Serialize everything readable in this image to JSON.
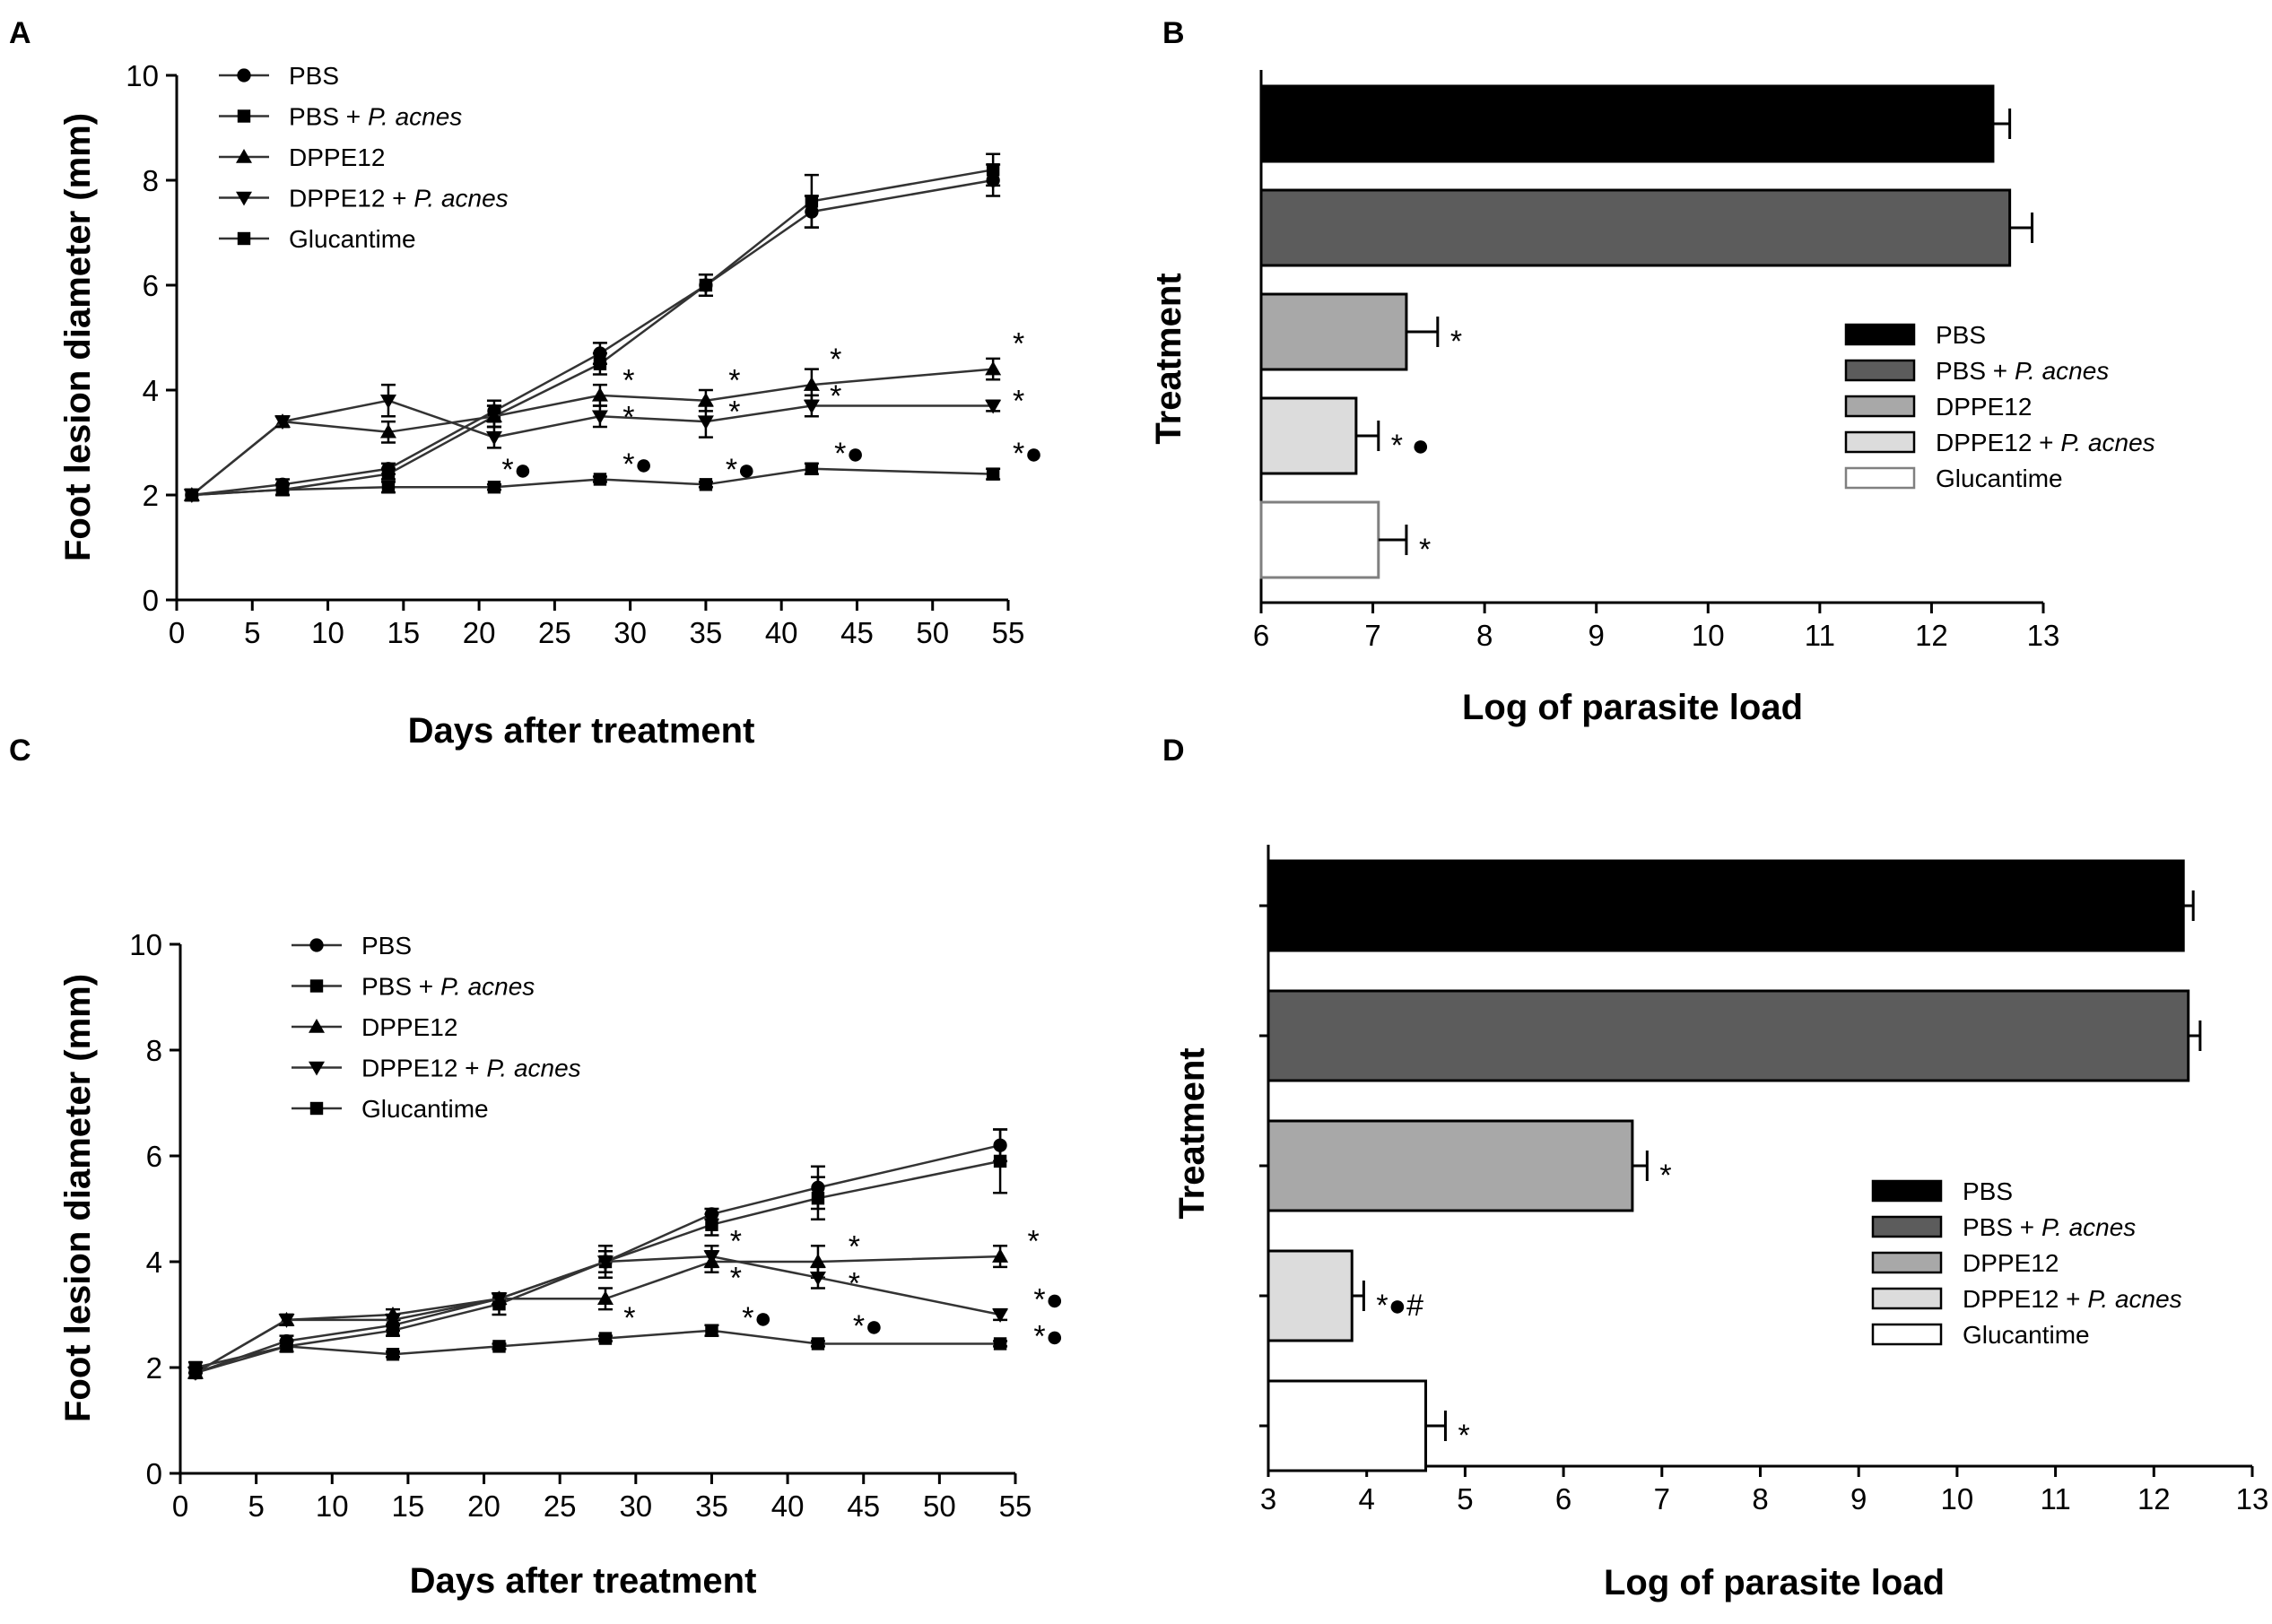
{
  "chart_data": [
    {
      "panel": "A",
      "type": "line",
      "xlabel": "Days after treatment",
      "ylabel": "Foot lesion diameter (mm)",
      "xticks": [
        0,
        5,
        10,
        15,
        20,
        25,
        30,
        35,
        40,
        45,
        50,
        55
      ],
      "yticks": [
        0,
        2,
        4,
        6,
        8,
        10
      ],
      "xlim": [
        0,
        55
      ],
      "ylim": [
        0,
        10
      ],
      "x": [
        1,
        7,
        14,
        21,
        28,
        35,
        42,
        54
      ],
      "series": [
        {
          "name": "PBS",
          "name_plain": "PBS",
          "name_italic": "",
          "marker": "circle",
          "values": [
            2.0,
            2.2,
            2.5,
            3.6,
            4.7,
            6.0,
            7.4,
            8.0
          ],
          "err": [
            0.1,
            0.1,
            0.1,
            0.2,
            0.2,
            0.2,
            0.3,
            0.3
          ]
        },
        {
          "name": "PBS + P. acnes",
          "name_plain": "PBS + ",
          "name_italic": "P. acnes",
          "marker": "square",
          "values": [
            2.0,
            2.1,
            2.4,
            3.5,
            4.5,
            6.0,
            7.6,
            8.2
          ],
          "err": [
            0.1,
            0.1,
            0.1,
            0.2,
            0.2,
            0.2,
            0.5,
            0.3
          ]
        },
        {
          "name": "DPPE12",
          "name_plain": "DPPE12",
          "name_italic": "",
          "marker": "triangle-up",
          "values": [
            2.0,
            3.4,
            3.2,
            3.5,
            3.9,
            3.8,
            4.1,
            4.4
          ],
          "err": [
            0.1,
            0.1,
            0.2,
            0.2,
            0.2,
            0.2,
            0.3,
            0.2
          ]
        },
        {
          "name": "DPPE12 + P. acnes",
          "name_plain": "DPPE12 + ",
          "name_italic": "P. acnes",
          "marker": "triangle-down",
          "values": [
            2.0,
            3.4,
            3.8,
            3.1,
            3.5,
            3.4,
            3.7,
            3.7
          ],
          "err": [
            0.1,
            0.1,
            0.3,
            0.2,
            0.2,
            0.3,
            0.2,
            0.1
          ]
        },
        {
          "name": "Glucantime",
          "name_plain": "Glucantime",
          "name_italic": "",
          "marker": "square",
          "values": [
            2.0,
            2.1,
            2.15,
            2.15,
            2.3,
            2.2,
            2.5,
            2.4
          ],
          "err": [
            0.1,
            0.1,
            0.1,
            0.05,
            0.05,
            0.05,
            0.1,
            0.1
          ]
        }
      ],
      "annotations": [
        {
          "text": "*●",
          "x": 21.5,
          "y": 2.5
        },
        {
          "text": "*●",
          "x": 29.5,
          "y": 2.6
        },
        {
          "text": "*●",
          "x": 36.3,
          "y": 2.5
        },
        {
          "text": "*●",
          "x": 43.5,
          "y": 2.8
        },
        {
          "text": "*●",
          "x": 55.3,
          "y": 2.8
        },
        {
          "text": "*",
          "x": 29.5,
          "y": 4.2
        },
        {
          "text": "*",
          "x": 29.5,
          "y": 3.5
        },
        {
          "text": "*",
          "x": 36.5,
          "y": 4.2
        },
        {
          "text": "*",
          "x": 36.5,
          "y": 3.6
        },
        {
          "text": "*",
          "x": 43.2,
          "y": 4.6
        },
        {
          "text": "*",
          "x": 43.2,
          "y": 3.9
        },
        {
          "text": "*",
          "x": 55.3,
          "y": 4.9
        },
        {
          "text": "*",
          "x": 55.3,
          "y": 3.8
        }
      ]
    },
    {
      "panel": "B",
      "type": "bar",
      "orientation": "horizontal",
      "xlabel": "Log of parasite load",
      "ylabel": "Treatment",
      "xticks": [
        6,
        7,
        8,
        9,
        10,
        11,
        12,
        13
      ],
      "xlim": [
        6,
        13
      ],
      "categories": [
        "PBS",
        "PBS + P. acnes",
        "DPPE12",
        "DPPE12 + P. acnes",
        "Glucantime"
      ],
      "legend": [
        {
          "plain": "PBS",
          "italic": ""
        },
        {
          "plain": "PBS + ",
          "italic": "P. acnes"
        },
        {
          "plain": "DPPE12",
          "italic": ""
        },
        {
          "plain": "DPPE12 + ",
          "italic": "P. acnes"
        },
        {
          "plain": "Glucantime",
          "italic": ""
        }
      ],
      "values": [
        12.55,
        12.7,
        7.3,
        6.85,
        7.05
      ],
      "err": [
        0.15,
        0.2,
        0.28,
        0.2,
        0.25
      ],
      "fills": [
        "#000000",
        "#5c5c5c",
        "#a8a8a8",
        "#dcdcdc",
        "#ffffff"
      ],
      "strokes": [
        "#000000",
        "#000000",
        "#000000",
        "#000000",
        "#808080"
      ],
      "labels": [
        "",
        "",
        "*",
        "* ●",
        "*"
      ]
    },
    {
      "panel": "C",
      "type": "line",
      "xlabel": "Days after treatment",
      "ylabel": "Foot lesion diameter (mm)",
      "xticks": [
        0,
        5,
        10,
        15,
        20,
        25,
        30,
        35,
        40,
        45,
        50,
        55
      ],
      "yticks": [
        0,
        2,
        4,
        6,
        8,
        10
      ],
      "xlim": [
        0,
        55
      ],
      "ylim": [
        0,
        10
      ],
      "x": [
        1,
        7,
        14,
        21,
        28,
        35,
        42,
        54
      ],
      "series": [
        {
          "name": "PBS",
          "name_plain": "PBS",
          "name_italic": "",
          "marker": "circle",
          "values": [
            1.9,
            2.5,
            2.8,
            3.3,
            4.0,
            4.9,
            5.4,
            6.2
          ],
          "err": [
            0.1,
            0.1,
            0.1,
            0.1,
            0.2,
            0.1,
            0.4,
            0.3
          ]
        },
        {
          "name": "PBS + P. acnes",
          "name_plain": "PBS + ",
          "name_italic": "P. acnes",
          "marker": "square",
          "values": [
            1.9,
            2.4,
            2.7,
            3.2,
            4.0,
            4.7,
            5.2,
            5.9
          ],
          "err": [
            0.1,
            0.1,
            0.1,
            0.2,
            0.3,
            0.2,
            0.4,
            0.6
          ]
        },
        {
          "name": "DPPE12",
          "name_plain": "DPPE12",
          "name_italic": "",
          "marker": "triangle-up",
          "values": [
            1.9,
            2.9,
            3.0,
            3.3,
            3.3,
            4.0,
            4.0,
            4.1
          ],
          "err": [
            0.1,
            0.1,
            0.1,
            0.1,
            0.2,
            0.2,
            0.3,
            0.2
          ]
        },
        {
          "name": "DPPE12 + P. acnes",
          "name_plain": "DPPE12 + ",
          "name_italic": "P. acnes",
          "marker": "triangle-down",
          "values": [
            1.9,
            2.9,
            2.9,
            3.3,
            4.0,
            4.1,
            3.7,
            3.0
          ],
          "err": [
            0.1,
            0.1,
            0.1,
            0.1,
            0.2,
            0.2,
            0.2,
            0.1
          ]
        },
        {
          "name": "Glucantime",
          "name_plain": "Glucantime",
          "name_italic": "",
          "marker": "square",
          "values": [
            2.0,
            2.4,
            2.25,
            2.4,
            2.55,
            2.7,
            2.45,
            2.45
          ],
          "err": [
            0.1,
            0.1,
            0.05,
            0.05,
            0.05,
            0.1,
            0.05,
            0.05
          ]
        }
      ],
      "annotations": [
        {
          "text": "*",
          "x": 29.2,
          "y": 2.95
        },
        {
          "text": "*●",
          "x": 37.0,
          "y": 2.95
        },
        {
          "text": "*●",
          "x": 44.3,
          "y": 2.8
        },
        {
          "text": "*●",
          "x": 56.2,
          "y": 2.6
        },
        {
          "text": "*●",
          "x": 56.2,
          "y": 3.3
        },
        {
          "text": "*",
          "x": 36.2,
          "y": 4.4
        },
        {
          "text": "*",
          "x": 36.2,
          "y": 3.7
        },
        {
          "text": "*",
          "x": 44.0,
          "y": 4.3
        },
        {
          "text": "*",
          "x": 44.0,
          "y": 3.6
        },
        {
          "text": "*",
          "x": 55.8,
          "y": 4.4
        }
      ]
    },
    {
      "panel": "D",
      "type": "bar",
      "orientation": "horizontal",
      "xlabel": "Log of parasite load",
      "ylabel": "Treatment",
      "xticks": [
        3,
        4,
        5,
        6,
        7,
        8,
        9,
        10,
        11,
        12,
        13
      ],
      "xlim": [
        3,
        13
      ],
      "categories": [
        "PBS",
        "PBS + P. acnes",
        "DPPE12",
        "DPPE12 + P. acnes",
        "Glucantime"
      ],
      "legend": [
        {
          "plain": "PBS",
          "italic": ""
        },
        {
          "plain": "PBS + ",
          "italic": "P. acnes"
        },
        {
          "plain": "DPPE12",
          "italic": ""
        },
        {
          "plain": "DPPE12 + ",
          "italic": "P. acnes"
        },
        {
          "plain": "Glucantime",
          "italic": ""
        }
      ],
      "values": [
        12.3,
        12.35,
        6.7,
        3.85,
        4.6
      ],
      "err": [
        0.1,
        0.12,
        0.15,
        0.12,
        0.2
      ],
      "fills": [
        "#000000",
        "#5c5c5c",
        "#a8a8a8",
        "#dcdcdc",
        "#ffffff"
      ],
      "strokes": [
        "#000000",
        "#000000",
        "#000000",
        "#000000",
        "#000000"
      ],
      "labels": [
        "",
        "",
        "*",
        "*●#",
        "*"
      ]
    }
  ]
}
